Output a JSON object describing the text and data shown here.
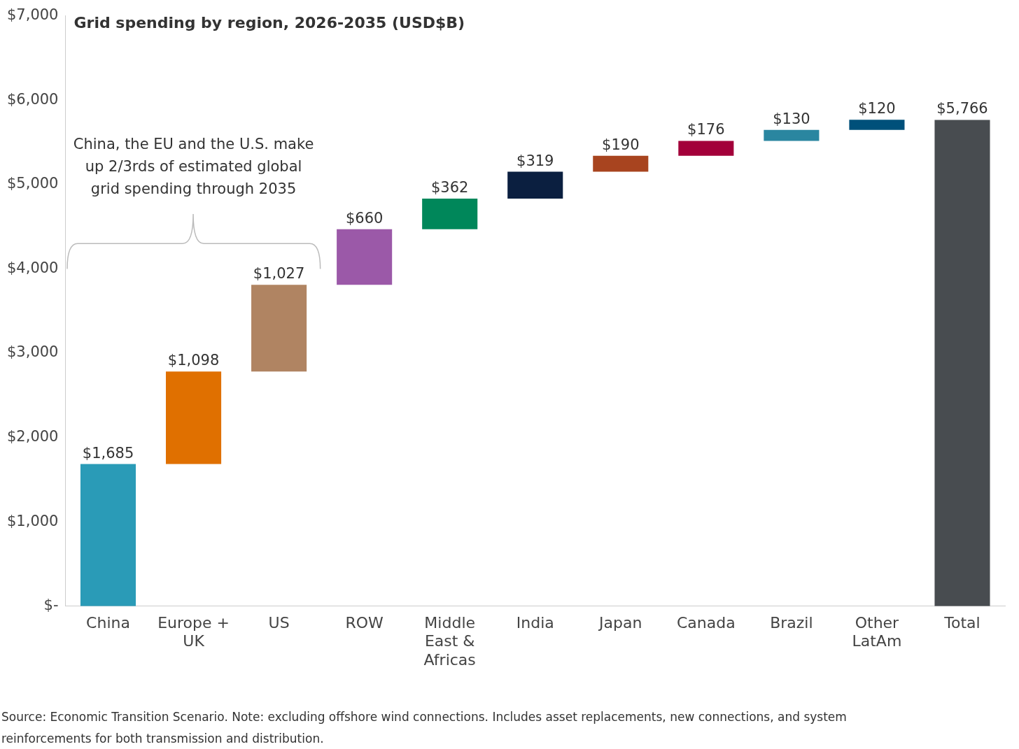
{
  "chart_data": {
    "type": "bar",
    "title": "Grid spending by region, 2026-2035 (USD$B)",
    "categories": [
      "China",
      "Europe + UK",
      "US",
      "ROW",
      "Middle East & Africas",
      "India",
      "Japan",
      "Canada",
      "Brazil",
      "Other LatAm",
      "Total"
    ],
    "values": [
      1685,
      1098,
      1027,
      660,
      362,
      319,
      190,
      176,
      130,
      120,
      5766
    ],
    "base": [
      0,
      1685,
      2783,
      3810,
      4470,
      4832,
      5151,
      5341,
      5517,
      5647,
      0
    ],
    "colors": [
      "#2a9bb7",
      "#e07000",
      "#b08462",
      "#9b59a8",
      "#00875a",
      "#0b1f40",
      "#a8441f",
      "#a3003a",
      "#2a86a0",
      "#00507a",
      "#484c50"
    ],
    "value_labels": [
      "$1,685",
      "$1,098",
      "$1,027",
      "$660",
      "$362",
      "$319",
      "$190",
      "$176",
      "$130",
      "$120",
      "$5,766"
    ],
    "ylim": [
      0,
      7000
    ],
    "yticks": [
      {
        "value": 0,
        "label": "$-"
      },
      {
        "value": 1000,
        "label": "$1,000"
      },
      {
        "value": 2000,
        "label": "$2,000"
      },
      {
        "value": 3000,
        "label": "$3,000"
      },
      {
        "value": 4000,
        "label": "$4,000"
      },
      {
        "value": 5000,
        "label": "$5,000"
      },
      {
        "value": 6000,
        "label": "$6,000"
      },
      {
        "value": 7000,
        "label": "$7,000"
      }
    ],
    "grid": false,
    "legend": false,
    "annotations": [
      "China, the EU and the U.S. make up 2/3rds of estimated global grid spending through 2035",
      "Source: Economic Transition Scenario. Note: excluding offshore wind connections. Includes asset replacements, new connections, and system reinforcements for both transmission and distribution."
    ]
  }
}
